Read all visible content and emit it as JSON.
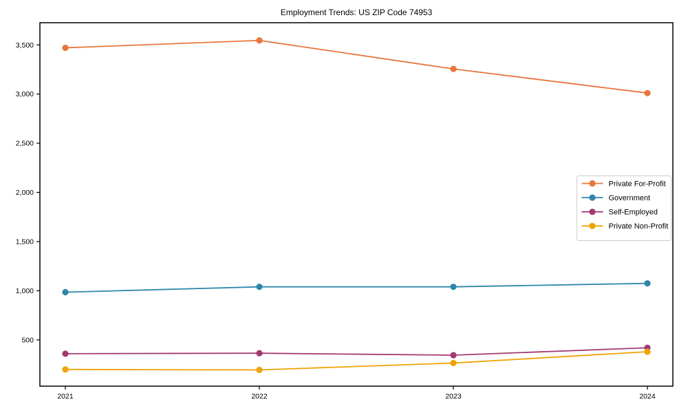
{
  "chart_data": {
    "type": "line",
    "title": "Employment Trends: US ZIP Code 74953",
    "categories": [
      "2021",
      "2022",
      "2023",
      "2024"
    ],
    "series": [
      {
        "name": "Private For-Profit",
        "color": "#E8763D",
        "values": [
          3470,
          3545,
          3255,
          3010
        ]
      },
      {
        "name": "Government",
        "color": "#2E86AB",
        "values": [
          985,
          1040,
          1040,
          1075
        ]
      },
      {
        "name": "Self-Employed",
        "color": "#A23B72",
        "values": [
          360,
          365,
          345,
          420
        ]
      },
      {
        "name": "Private Non-Profit",
        "color": "#F0A202",
        "values": [
          200,
          195,
          265,
          380
        ]
      }
    ],
    "xlabel": "",
    "ylabel": "",
    "ylim": [
      30,
      3725
    ],
    "yticks": [
      500,
      1000,
      1500,
      2000,
      2500,
      3000,
      3500
    ],
    "ytick_labels": [
      "500",
      "1,000",
      "1,500",
      "2,000",
      "2,500",
      "3,000",
      "3,500"
    ],
    "grid": false,
    "legend_position": "center right",
    "frame_color": "#000000",
    "legend_border_color": "#cccccc",
    "legend_background": "#ffffff"
  }
}
